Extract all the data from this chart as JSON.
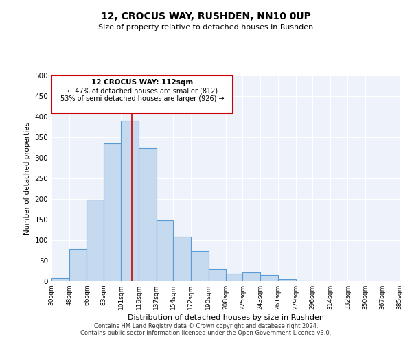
{
  "title": "12, CROCUS WAY, RUSHDEN, NN10 0UP",
  "subtitle": "Size of property relative to detached houses in Rushden",
  "xlabel": "Distribution of detached houses by size in Rushden",
  "ylabel": "Number of detached properties",
  "bar_labels": [
    "30sqm",
    "48sqm",
    "66sqm",
    "83sqm",
    "101sqm",
    "119sqm",
    "137sqm",
    "154sqm",
    "172sqm",
    "190sqm",
    "208sqm",
    "225sqm",
    "243sqm",
    "261sqm",
    "279sqm",
    "296sqm",
    "314sqm",
    "332sqm",
    "350sqm",
    "367sqm",
    "385sqm"
  ],
  "bar_values": [
    8,
    78,
    198,
    335,
    390,
    323,
    149,
    109,
    73,
    30,
    19,
    21,
    15,
    5,
    1,
    0,
    0,
    0,
    0,
    0
  ],
  "bar_color": "#c5d9ef",
  "bar_edge_color": "#5b9bd5",
  "annotation_title": "12 CROCUS WAY: 112sqm",
  "annotation_line1": "← 47% of detached houses are smaller (812)",
  "annotation_line2": "53% of semi-detached houses are larger (926) →",
  "property_line_color": "#cc0000",
  "ylim": [
    0,
    500
  ],
  "yticks": [
    0,
    50,
    100,
    150,
    200,
    250,
    300,
    350,
    400,
    450,
    500
  ],
  "footer_line1": "Contains HM Land Registry data © Crown copyright and database right 2024.",
  "footer_line2": "Contains public sector information licensed under the Open Government Licence v3.0.",
  "annotation_box_color": "#ffffff",
  "annotation_box_edge_color": "#cc0000",
  "background_color": "#eef2fb"
}
